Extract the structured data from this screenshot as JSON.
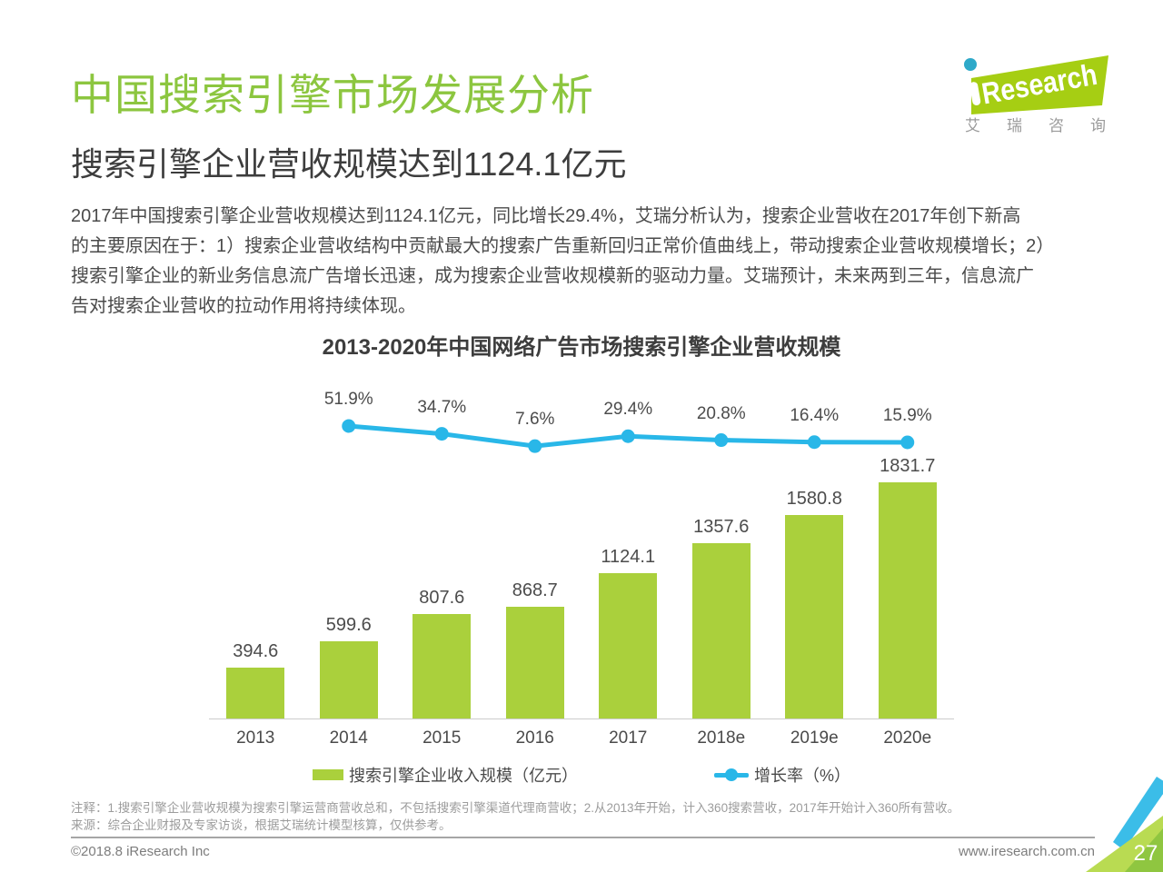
{
  "header": {
    "title": "中国搜索引擎市场发展分析",
    "subtitle": "搜索引擎企业营收规模达到1124.1亿元"
  },
  "logo": {
    "brand_text": "Research",
    "caption": "艾瑞咨询"
  },
  "body": {
    "lines": [
      "2017年中国搜索引擎企业营收规模达到1124.1亿元，同比增长29.4%，艾瑞分析认为，搜索企业营收在2017年创下新高",
      "的主要原因在于：1）搜索企业营收结构中贡献最大的搜索广告重新回归正常价值曲线上，带动搜索企业营收规模增长；2）",
      "搜索引擎企业的新业务信息流广告增长迅速，成为搜索企业营收规模新的驱动力量。艾瑞预计，未来两到三年，信息流广",
      "告对搜索企业营收的拉动作用将持续体现。"
    ]
  },
  "chart_data": {
    "type": "bar",
    "title": "2013-2020年中国网络广告市场搜索引擎企业营收规模",
    "categories": [
      "2013",
      "2014",
      "2015",
      "2016",
      "2017",
      "2018e",
      "2019e",
      "2020e"
    ],
    "series": [
      {
        "name": "搜索引擎企业收入规模（亿元）",
        "type": "bar",
        "color": "#aad03c",
        "values": [
          394.6,
          599.6,
          807.6,
          868.7,
          1124.1,
          1357.6,
          1580.8,
          1831.7
        ]
      },
      {
        "name": "增长率（%）",
        "type": "line",
        "color": "#29b7e8",
        "values": [
          null,
          51.9,
          34.7,
          7.6,
          29.4,
          20.8,
          16.4,
          15.9
        ]
      }
    ],
    "ylim": [
      0,
      1900
    ],
    "grid": false,
    "value_labels": true,
    "legend_position": "bottom"
  },
  "footnotes": {
    "note": "注释：1.搜索引擎企业营收规模为搜索引擎运营商营收总和，不包括搜索引擎渠道代理商营收；2.从2013年开始，计入360搜索营收，2017年开始计入360所有营收。",
    "source": "来源：综合企业财报及专家访谈，根据艾瑞统计模型核算，仅供参考。"
  },
  "footer": {
    "copyright": "©2018.8 iResearch Inc",
    "website": "www.iresearch.com.cn",
    "page_number": "27"
  },
  "colors": {
    "title_green": "#8cc63f",
    "bar_green": "#aad03c",
    "line_cyan": "#29b7e8",
    "logo_green": "#a6ce13",
    "logo_teal": "#2ea9c9",
    "corner_light_green": "#b9db52",
    "corner_dark_green": "#8fc640"
  }
}
